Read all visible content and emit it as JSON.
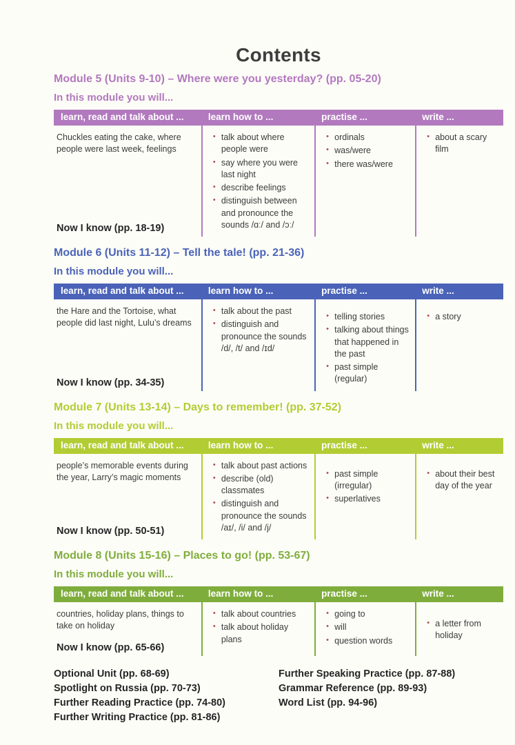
{
  "page_title": "Contents",
  "columns": [
    "learn, read and talk about ...",
    "learn how to ...",
    "practise ...",
    "write ..."
  ],
  "colors": {
    "module5_accent": "#b279bf",
    "module6_accent": "#4a63b8",
    "module7_accent": "#b2cc33",
    "module8_accent": "#7fad3c",
    "bullet": "#b04f55"
  },
  "modules": [
    {
      "heading": "Module 5 (Units 9-10) – Where were you yesterday? (pp. 05-20)",
      "intro": "In this module you will...",
      "accent": "#b279bf",
      "learn_read_talk_about": "Chuckles eating the cake, where people were last week, feelings",
      "learn_how_to": [
        "talk about where people were",
        "say where you were last night",
        "describe feelings",
        "distinguish between and pronounce the sounds /ɑː/ and /ɔː/"
      ],
      "practise": [
        "ordinals",
        "was/were",
        "there was/were"
      ],
      "write": [
        "about a scary film"
      ],
      "now_i_know": "Now I know (pp. 18-19)"
    },
    {
      "heading": "Module 6 (Units 11-12) – Tell the tale! (pp. 21-36)",
      "intro": "In this module you will...",
      "accent": "#4a63b8",
      "learn_read_talk_about": "the Hare and the Tortoise, what people did last night, Lulu’s dreams",
      "learn_how_to": [
        "talk about the past",
        "distinguish and pronounce the sounds /d/, /t/ and /ɪd/"
      ],
      "practise": [
        "telling stories",
        "talking about things that happened in the past",
        "past simple (regular)"
      ],
      "write": [
        "a story"
      ],
      "now_i_know": "Now I know (pp. 34-35)"
    },
    {
      "heading": "Module 7 (Units 13-14) – Days to remember! (pp. 37-52)",
      "intro": "In this module you will...",
      "accent": "#b2cc33",
      "learn_read_talk_about": "people’s memorable events during the year, Larry’s magic moments",
      "learn_how_to": [
        "talk about past actions",
        "describe (old) classmates",
        "distinguish and pronounce the sounds /aɪ/, /i/ and /j/"
      ],
      "practise": [
        "past simple (irregular)",
        "superlatives"
      ],
      "write": [
        "about their best day of the year"
      ],
      "now_i_know": "Now I know (pp. 50-51)"
    },
    {
      "heading": "Module 8 (Units 15-16) – Places to go! (pp. 53-67)",
      "intro": "In this module you will...",
      "accent": "#7fad3c",
      "learn_read_talk_about": "countries, holiday plans, things to take on holiday",
      "learn_how_to": [
        "talk about countries",
        "talk about holiday plans"
      ],
      "practise": [
        "going to",
        "will",
        "question words"
      ],
      "write": [
        "a letter from holiday"
      ],
      "now_i_know": "Now I know (pp. 65-66)"
    }
  ],
  "footer": {
    "left": [
      "Optional Unit (pp. 68-69)",
      "Spotlight on Russia (pp. 70-73)",
      "Further Reading Practice (pp. 74-80)",
      "Further Writing Practice (pp. 81-86)"
    ],
    "right": [
      "Further Speaking Practice (pp. 87-88)",
      "Grammar Reference (pp. 89-93)",
      "Word List (pp. 94-96)"
    ]
  }
}
